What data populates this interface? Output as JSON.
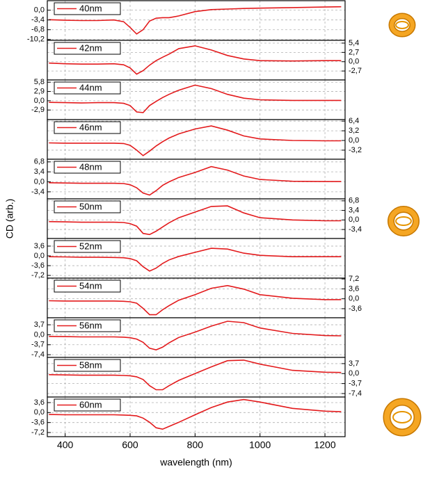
{
  "chart_data": [
    {
      "type": "line",
      "xlim": [
        345,
        1262
      ],
      "ylim": [
        -10.5,
        3.3
      ],
      "yaxis": "left",
      "grid": true,
      "yticks": [
        {
          "value": 0,
          "label": "0,0"
        },
        {
          "value": -3.4,
          "label": "-3,4"
        },
        {
          "value": -6.8,
          "label": "-6,8"
        },
        {
          "value": -10.2,
          "label": "-10,2"
        }
      ],
      "x": [
        350,
        400,
        450,
        500,
        550,
        580,
        600,
        620,
        640,
        660,
        680,
        700,
        720,
        750,
        800,
        850,
        900,
        950,
        1000,
        1100,
        1200,
        1250
      ],
      "series": [
        {
          "name": "40nm",
          "color": "#e31a1c",
          "values": [
            -3.3,
            -3.5,
            -3.6,
            -3.6,
            -3.4,
            -4.0,
            -6.0,
            -8.3,
            -6.8,
            -3.8,
            -2.8,
            -2.6,
            -2.6,
            -2.0,
            -0.5,
            0.2,
            0.4,
            0.6,
            0.7,
            0.9,
            1.1,
            1.2
          ]
        }
      ]
    },
    {
      "type": "line",
      "xlim": [
        345,
        1262
      ],
      "ylim": [
        -5.3,
        6.2
      ],
      "yaxis": "right",
      "grid": true,
      "yticks": [
        {
          "value": 5.4,
          "label": "5,4"
        },
        {
          "value": 2.7,
          "label": "2,7"
        },
        {
          "value": 0,
          "label": "0,0"
        },
        {
          "value": -2.7,
          "label": "-2,7"
        }
      ],
      "x": [
        350,
        400,
        450,
        500,
        550,
        580,
        600,
        620,
        640,
        660,
        680,
        700,
        720,
        750,
        800,
        850,
        900,
        950,
        1000,
        1100,
        1200,
        1250
      ],
      "series": [
        {
          "name": "42nm",
          "color": "#e31a1c",
          "values": [
            -0.4,
            -0.6,
            -0.7,
            -0.7,
            -0.6,
            -0.9,
            -1.8,
            -3.6,
            -2.6,
            -1.0,
            0.3,
            1.3,
            2.2,
            3.8,
            4.6,
            3.4,
            1.8,
            0.8,
            0.3,
            0.2,
            0.3,
            0.3
          ]
        }
      ]
    },
    {
      "type": "line",
      "xlim": [
        345,
        1262
      ],
      "ylim": [
        -5.9,
        6.5
      ],
      "yaxis": "left",
      "grid": true,
      "yticks": [
        {
          "value": 5.8,
          "label": "5,8"
        },
        {
          "value": 2.9,
          "label": "2,9"
        },
        {
          "value": 0,
          "label": "0,0"
        },
        {
          "value": -2.9,
          "label": "-2,9"
        }
      ],
      "x": [
        350,
        400,
        450,
        500,
        550,
        580,
        600,
        620,
        640,
        660,
        680,
        700,
        720,
        750,
        800,
        850,
        900,
        950,
        1000,
        1100,
        1200,
        1250
      ],
      "series": [
        {
          "name": "44nm",
          "color": "#e31a1c",
          "values": [
            -0.5,
            -0.6,
            -0.7,
            -0.6,
            -0.6,
            -0.8,
            -1.5,
            -3.5,
            -3.7,
            -1.5,
            -0.2,
            1.0,
            2.0,
            3.3,
            4.9,
            3.8,
            2.0,
            0.8,
            0.3,
            0.1,
            0.1,
            0.1
          ]
        }
      ]
    },
    {
      "type": "line",
      "xlim": [
        345,
        1262
      ],
      "ylim": [
        -6.2,
        6.9
      ],
      "yaxis": "right",
      "grid": true,
      "yticks": [
        {
          "value": 6.4,
          "label": "6,4"
        },
        {
          "value": 3.2,
          "label": "3,2"
        },
        {
          "value": 0,
          "label": "0,0"
        },
        {
          "value": -3.2,
          "label": "-3,2"
        }
      ],
      "x": [
        350,
        400,
        450,
        500,
        550,
        580,
        600,
        620,
        640,
        660,
        680,
        700,
        720,
        750,
        800,
        850,
        900,
        950,
        1000,
        1100,
        1200,
        1250
      ],
      "series": [
        {
          "name": "46nm",
          "color": "#e31a1c",
          "values": [
            -0.8,
            -0.9,
            -0.9,
            -0.9,
            -0.9,
            -1.0,
            -1.6,
            -3.2,
            -5.0,
            -3.5,
            -1.8,
            -0.4,
            0.8,
            2.2,
            3.8,
            4.8,
            3.4,
            1.5,
            0.5,
            0,
            -0.1,
            -0.1
          ]
        }
      ]
    },
    {
      "type": "line",
      "xlim": [
        345,
        1262
      ],
      "ylim": [
        -5.8,
        7.7
      ],
      "yaxis": "left",
      "grid": true,
      "yticks": [
        {
          "value": 6.8,
          "label": "6,8"
        },
        {
          "value": 3.4,
          "label": "3,4"
        },
        {
          "value": 0,
          "label": "0,0"
        },
        {
          "value": -3.4,
          "label": "-3,4"
        }
      ],
      "x": [
        350,
        400,
        450,
        500,
        550,
        580,
        600,
        620,
        640,
        660,
        680,
        700,
        720,
        750,
        800,
        850,
        900,
        950,
        1000,
        1100,
        1200,
        1250
      ],
      "series": [
        {
          "name": "48nm",
          "color": "#e31a1c",
          "values": [
            -0.3,
            -0.4,
            -0.5,
            -0.5,
            -0.5,
            -0.6,
            -1.0,
            -2.0,
            -3.8,
            -4.5,
            -3.0,
            -1.2,
            0,
            1.5,
            3.2,
            5.2,
            4.0,
            2.0,
            0.8,
            0.2,
            0.1,
            0.1
          ]
        }
      ]
    },
    {
      "type": "line",
      "xlim": [
        345,
        1262
      ],
      "ylim": [
        -6.6,
        7.5
      ],
      "yaxis": "right",
      "grid": true,
      "yticks": [
        {
          "value": 6.8,
          "label": "6,8"
        },
        {
          "value": 3.4,
          "label": "3,4"
        },
        {
          "value": 0,
          "label": "0,0"
        },
        {
          "value": -3.4,
          "label": "-3,4"
        }
      ],
      "x": [
        350,
        400,
        450,
        500,
        550,
        580,
        600,
        620,
        640,
        660,
        680,
        700,
        720,
        750,
        800,
        850,
        900,
        950,
        1000,
        1100,
        1200,
        1250
      ],
      "series": [
        {
          "name": "50nm",
          "color": "#e31a1c",
          "values": [
            -0.6,
            -0.7,
            -0.8,
            -0.8,
            -0.8,
            -0.9,
            -1.3,
            -2.2,
            -4.8,
            -5.2,
            -4.0,
            -2.5,
            -1.0,
            0.8,
            2.8,
            4.8,
            5.0,
            2.5,
            0.8,
            0,
            -0.3,
            -0.3
          ]
        }
      ]
    },
    {
      "type": "line",
      "xlim": [
        345,
        1262
      ],
      "ylim": [
        -8.2,
        6.4
      ],
      "yaxis": "left",
      "grid": true,
      "yticks": [
        {
          "value": 3.6,
          "label": "3,6"
        },
        {
          "value": 0,
          "label": "0,0"
        },
        {
          "value": -3.6,
          "label": "-3,6"
        },
        {
          "value": -7.2,
          "label": "-7,2"
        }
      ],
      "x": [
        350,
        400,
        450,
        500,
        550,
        580,
        600,
        620,
        640,
        660,
        680,
        700,
        720,
        750,
        800,
        850,
        900,
        950,
        1000,
        1100,
        1200,
        1250
      ],
      "series": [
        {
          "name": "52nm",
          "color": "#e31a1c",
          "values": [
            -0.3,
            -0.4,
            -0.5,
            -0.5,
            -0.6,
            -0.7,
            -1.0,
            -1.8,
            -4.0,
            -5.6,
            -4.5,
            -2.8,
            -1.5,
            -0.2,
            1.3,
            2.8,
            2.5,
            1.0,
            0.2,
            -0.3,
            -0.3,
            -0.3
          ]
        }
      ]
    },
    {
      "type": "line",
      "xlim": [
        345,
        1262
      ],
      "ylim": [
        -6.9,
        7.5
      ],
      "yaxis": "right",
      "grid": true,
      "yticks": [
        {
          "value": 7.2,
          "label": "7,2"
        },
        {
          "value": 3.6,
          "label": "3,6"
        },
        {
          "value": 0,
          "label": "0,0"
        },
        {
          "value": -3.6,
          "label": "-3,6"
        }
      ],
      "x": [
        350,
        400,
        450,
        500,
        550,
        580,
        600,
        620,
        640,
        660,
        680,
        700,
        720,
        750,
        800,
        850,
        900,
        950,
        1000,
        1100,
        1200,
        1250
      ],
      "series": [
        {
          "name": "54nm",
          "color": "#e31a1c",
          "values": [
            -0.7,
            -0.8,
            -0.8,
            -0.8,
            -0.8,
            -0.9,
            -1.1,
            -1.6,
            -3.5,
            -5.8,
            -5.8,
            -4.0,
            -2.5,
            -0.5,
            1.5,
            3.8,
            4.8,
            3.5,
            1.5,
            0.2,
            -0.3,
            -0.3
          ]
        }
      ]
    },
    {
      "type": "line",
      "xlim": [
        345,
        1262
      ],
      "ylim": [
        -8.4,
        6.3
      ],
      "yaxis": "left",
      "grid": true,
      "yticks": [
        {
          "value": 3.7,
          "label": "3,7"
        },
        {
          "value": 0,
          "label": "0,0"
        },
        {
          "value": -3.7,
          "label": "-3,7"
        },
        {
          "value": -7.4,
          "label": "-7,4"
        }
      ],
      "x": [
        350,
        400,
        450,
        500,
        550,
        580,
        600,
        620,
        640,
        660,
        680,
        700,
        720,
        750,
        800,
        850,
        900,
        950,
        1000,
        1100,
        1200,
        1250
      ],
      "series": [
        {
          "name": "56nm",
          "color": "#e31a1c",
          "values": [
            -0.6,
            -0.7,
            -0.8,
            -0.8,
            -0.8,
            -0.9,
            -1.1,
            -1.6,
            -2.8,
            -5.0,
            -5.6,
            -4.6,
            -3.0,
            -1.0,
            1.0,
            3.2,
            5.0,
            4.5,
            2.5,
            0.5,
            -0.3,
            -0.4
          ]
        }
      ]
    },
    {
      "type": "line",
      "xlim": [
        345,
        1262
      ],
      "ylim": [
        -8.7,
        6.0
      ],
      "yaxis": "right",
      "grid": true,
      "yticks": [
        {
          "value": 3.7,
          "label": "3,7"
        },
        {
          "value": 0,
          "label": "0,0"
        },
        {
          "value": -3.7,
          "label": "-3,7"
        },
        {
          "value": -7.4,
          "label": "-7,4"
        }
      ],
      "x": [
        350,
        400,
        450,
        500,
        550,
        580,
        600,
        620,
        640,
        660,
        680,
        700,
        720,
        750,
        800,
        850,
        900,
        950,
        1000,
        1100,
        1200,
        1250
      ],
      "series": [
        {
          "name": "58nm",
          "color": "#e31a1c",
          "values": [
            -0.4,
            -0.5,
            -0.6,
            -0.6,
            -0.6,
            -0.7,
            -0.8,
            -1.2,
            -2.2,
            -4.5,
            -6.0,
            -6.0,
            -4.5,
            -2.5,
            0,
            2.5,
            4.8,
            5.0,
            3.5,
            1.2,
            0.5,
            0.4
          ]
        }
      ]
    },
    {
      "type": "line",
      "xlim": [
        345,
        1262
      ],
      "ylim": [
        -8.7,
        5.6
      ],
      "yaxis": "left",
      "grid": true,
      "yticks": [
        {
          "value": 3.6,
          "label": "3,6"
        },
        {
          "value": 0,
          "label": "0,0"
        },
        {
          "value": -3.6,
          "label": "-3,6"
        },
        {
          "value": -7.2,
          "label": "-7,2"
        }
      ],
      "xticks": [
        400,
        600,
        800,
        1000,
        1200
      ],
      "xlabel": "wavelength (nm)",
      "ylabel": "CD (arb.)",
      "x": [
        350,
        400,
        450,
        500,
        550,
        580,
        600,
        620,
        640,
        660,
        680,
        700,
        720,
        750,
        800,
        850,
        900,
        950,
        1000,
        1100,
        1200,
        1250
      ],
      "series": [
        {
          "name": "60nm",
          "color": "#e31a1c",
          "values": [
            -0.7,
            -0.8,
            -0.8,
            -0.8,
            -0.8,
            -0.9,
            -1.0,
            -1.2,
            -2.0,
            -3.5,
            -5.5,
            -6.0,
            -5.0,
            -3.5,
            -0.8,
            1.8,
            3.8,
            4.7,
            3.8,
            1.5,
            0.5,
            0.3
          ]
        }
      ]
    }
  ]
}
